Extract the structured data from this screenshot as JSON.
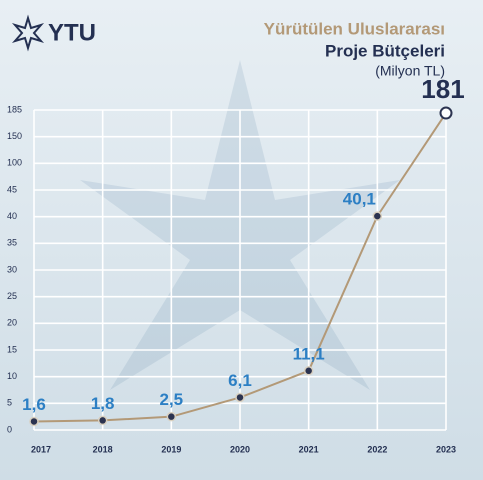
{
  "logo": "YTU",
  "chart_data": {
    "type": "line",
    "title": "Yürütülen Uluslararası",
    "subtitle": "Proje Bütçeleri",
    "unit_label": "(Milyon TL)",
    "categories": [
      "2017",
      "2018",
      "2019",
      "2020",
      "2021",
      "2022",
      "2023"
    ],
    "values": [
      1.6,
      1.8,
      2.5,
      6.1,
      11.1,
      40.1,
      181
    ],
    "value_labels": [
      "1,6",
      "1,8",
      "2,5",
      "6,1",
      "11,1",
      "40,1",
      "181"
    ],
    "color": "#b39977",
    "marker_color": "#2b3350",
    "label_color": "#2c7fc4",
    "ylim": [
      0,
      185
    ],
    "yticks": [
      0,
      5,
      10,
      15,
      20,
      25,
      30,
      35,
      40,
      45,
      100,
      150,
      185
    ],
    "grid": true
  }
}
